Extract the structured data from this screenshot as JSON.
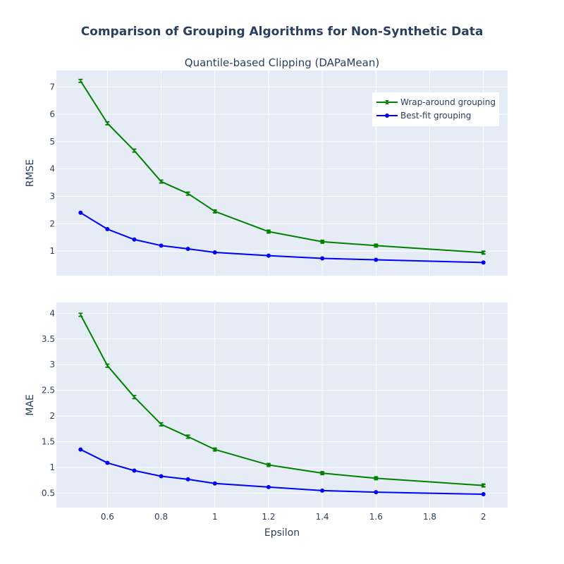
{
  "chart_data": {
    "type": "line",
    "title": "Comparison of Grouping Algorithms for Non-Synthetic Data",
    "subtitle": "Quantile-based Clipping (DAPaMean)",
    "xlabel": "Epsilon",
    "x": [
      0.5,
      0.6,
      0.7,
      0.8,
      0.9,
      1.0,
      1.2,
      1.4,
      1.6,
      2.0
    ],
    "xlim": [
      0.41,
      2.09
    ],
    "x_ticks": [
      0.6,
      0.8,
      1.0,
      1.2,
      1.4,
      1.6,
      1.8,
      2.0
    ],
    "x_tick_labels": [
      "0.6",
      "0.8",
      "1",
      "1.2",
      "1.4",
      "1.6",
      "1.8",
      "2"
    ],
    "grid": true,
    "legend_position": "top-right",
    "colors": {
      "wrap": "#008000",
      "best": "#0000ff",
      "plot_bg": "#e5ecf6",
      "grid": "#ffffff",
      "text": "#2a3f5f"
    },
    "panels": [
      {
        "ylabel": "RMSE",
        "ylim": [
          0.1,
          7.6
        ],
        "y_ticks": [
          1,
          2,
          3,
          4,
          5,
          6,
          7
        ],
        "y_tick_labels": [
          "1",
          "2",
          "3",
          "4",
          "5",
          "6",
          "7"
        ],
        "series": [
          {
            "name": "Wrap-around grouping",
            "marker": "bowtie",
            "values": [
              7.22,
              5.67,
              4.67,
              3.54,
              3.1,
              2.45,
              1.71,
              1.34,
              1.2,
              0.94
            ],
            "error": [
              0.05,
              0.05,
              0.05,
              0.05,
              0.05,
              0.04,
              0.04,
              0.04,
              0.04,
              0.04
            ]
          },
          {
            "name": "Best-fit grouping",
            "marker": "circle",
            "values": [
              2.4,
              1.8,
              1.42,
              1.2,
              1.08,
              0.95,
              0.83,
              0.73,
              0.68,
              0.58
            ],
            "error": [
              0,
              0,
              0,
              0,
              0,
              0,
              0,
              0,
              0,
              0
            ]
          }
        ]
      },
      {
        "ylabel": "MAE",
        "ylim": [
          0.22,
          4.21
        ],
        "y_ticks": [
          0.5,
          1,
          1.5,
          2,
          2.5,
          3,
          3.5,
          4
        ],
        "y_tick_labels": [
          "0.5",
          "1",
          "1.5",
          "2",
          "2.5",
          "3",
          "3.5",
          "4"
        ],
        "series": [
          {
            "name": "Wrap-around grouping",
            "marker": "bowtie",
            "values": [
              3.97,
              2.98,
              2.37,
              1.84,
              1.6,
              1.35,
              1.05,
              0.89,
              0.79,
              0.65
            ],
            "error": [
              0.03,
              0.03,
              0.03,
              0.03,
              0.03,
              0.02,
              0.02,
              0.02,
              0.02,
              0.02
            ]
          },
          {
            "name": "Best-fit grouping",
            "marker": "circle",
            "values": [
              1.35,
              1.09,
              0.94,
              0.83,
              0.77,
              0.69,
              0.62,
              0.55,
              0.52,
              0.48
            ],
            "error": [
              0,
              0,
              0,
              0,
              0,
              0,
              0,
              0,
              0,
              0
            ]
          }
        ]
      }
    ],
    "legend": [
      "Wrap-around grouping",
      "Best-fit grouping"
    ]
  }
}
